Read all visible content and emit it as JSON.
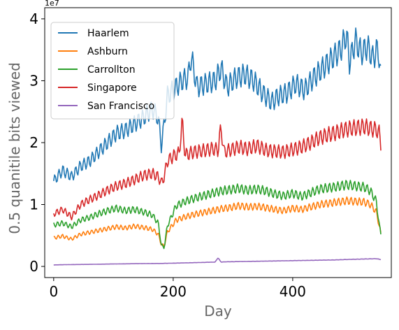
{
  "chart_data": {
    "type": "line",
    "title": "",
    "xlabel": "Day",
    "ylabel": "0.5 quanitile bits viewed",
    "y_scale_label": "1e7",
    "xlim": [
      -15,
      565
    ],
    "ylim": [
      -1800000,
      41800000
    ],
    "x_ticks": [
      0,
      200,
      400
    ],
    "x_tick_labels": [
      "0",
      "200",
      "400"
    ],
    "y_ticks": [
      0,
      10000000,
      20000000,
      30000000,
      40000000
    ],
    "y_tick_labels": [
      "0",
      "1",
      "2",
      "3",
      "4"
    ],
    "grid": false,
    "legend_position": "top-left",
    "series": [
      {
        "name": "Haarlem",
        "color": "#1f77b4",
        "x": [
          0,
          15,
          30,
          45,
          60,
          75,
          90,
          105,
          120,
          135,
          150,
          165,
          175,
          180,
          185,
          190,
          200,
          215,
          225,
          230,
          240,
          255,
          270,
          280,
          290,
          305,
          320,
          335,
          350,
          360,
          365,
          375,
          390,
          405,
          420,
          435,
          450,
          465,
          480,
          490,
          495,
          505,
          515,
          525,
          535,
          540,
          545,
          548
        ],
        "y": [
          13800000,
          15500000,
          14500000,
          16200000,
          17000000,
          18500000,
          20000000,
          21500000,
          22000000,
          23000000,
          24000000,
          25500000,
          24000000,
          19500000,
          23000000,
          27500000,
          28500000,
          30000000,
          30500000,
          34000000,
          29000000,
          29500000,
          30000000,
          32000000,
          29000000,
          30500000,
          31000000,
          30000000,
          28000000,
          27000000,
          26500000,
          27500000,
          28000000,
          29500000,
          28500000,
          30500000,
          32000000,
          33500000,
          35000000,
          37500000,
          33000000,
          36500000,
          34500000,
          35500000,
          33500000,
          35000000,
          34000000,
          30000000
        ]
      },
      {
        "name": "Ashburn",
        "color": "#ff7f0e",
        "x": [
          0,
          15,
          30,
          45,
          60,
          75,
          90,
          105,
          120,
          135,
          150,
          165,
          175,
          180,
          185,
          190,
          205,
          220,
          235,
          250,
          265,
          280,
          295,
          310,
          325,
          340,
          355,
          370,
          385,
          400,
          415,
          430,
          445,
          460,
          475,
          490,
          505,
          520,
          530,
          540,
          545,
          548
        ],
        "y": [
          4600000,
          4900000,
          4400000,
          5200000,
          5500000,
          5800000,
          6100000,
          6400000,
          6200000,
          6500000,
          6300000,
          6000000,
          5200000,
          3600000,
          3300000,
          5500000,
          7500000,
          8000000,
          8400000,
          8700000,
          9000000,
          9300000,
          9500000,
          9800000,
          9600000,
          9700000,
          9500000,
          9200000,
          9000000,
          9400000,
          9200000,
          9600000,
          10000000,
          10200000,
          10400000,
          10600000,
          10500000,
          10400000,
          10000000,
          8800000,
          6500000,
          5000000
        ]
      },
      {
        "name": "Carrollton",
        "color": "#2ca02c",
        "x": [
          0,
          15,
          30,
          45,
          60,
          75,
          90,
          105,
          120,
          135,
          150,
          165,
          175,
          180,
          185,
          190,
          205,
          220,
          235,
          250,
          265,
          280,
          295,
          310,
          325,
          340,
          355,
          370,
          385,
          400,
          415,
          430,
          445,
          460,
          475,
          490,
          505,
          520,
          530,
          540,
          545,
          548
        ],
        "y": [
          6700000,
          7000000,
          6400000,
          7500000,
          7900000,
          8500000,
          9000000,
          9400000,
          9000000,
          9200000,
          8800000,
          8300000,
          7000000,
          3500000,
          3000000,
          6500000,
          9800000,
          10500000,
          11000000,
          11400000,
          11800000,
          12200000,
          12400000,
          12600000,
          12300000,
          12500000,
          12200000,
          11700000,
          11400000,
          11800000,
          11300000,
          11900000,
          12500000,
          12700000,
          12900000,
          13200000,
          13000000,
          12800000,
          12200000,
          10500000,
          6500000,
          5000000
        ]
      },
      {
        "name": "Singapore",
        "color": "#d62728",
        "x": [
          0,
          15,
          30,
          45,
          60,
          75,
          90,
          105,
          120,
          135,
          150,
          165,
          175,
          180,
          185,
          190,
          200,
          210,
          215,
          220,
          235,
          250,
          265,
          275,
          280,
          285,
          295,
          310,
          325,
          340,
          355,
          370,
          385,
          400,
          415,
          430,
          445,
          460,
          475,
          490,
          505,
          520,
          530,
          540,
          545,
          548
        ],
        "y": [
          8500000,
          9200000,
          8000000,
          10000000,
          10800000,
          11500000,
          12300000,
          13000000,
          13400000,
          14000000,
          14700000,
          15000000,
          14500000,
          13500000,
          14500000,
          17000000,
          17800000,
          18300000,
          23500000,
          18000000,
          18500000,
          18700000,
          19000000,
          18800000,
          22500000,
          18500000,
          18800000,
          19300000,
          19000000,
          19500000,
          18800000,
          18600000,
          18500000,
          18900000,
          19300000,
          20000000,
          20800000,
          21300000,
          21700000,
          22200000,
          22400000,
          22600000,
          22300000,
          22100000,
          21500000,
          19500000
        ]
      },
      {
        "name": "San Francisco",
        "color": "#9467bd",
        "x": [
          0,
          30,
          60,
          90,
          120,
          150,
          180,
          210,
          240,
          270,
          275,
          280,
          290,
          320,
          350,
          380,
          410,
          440,
          470,
          500,
          520,
          540,
          548
        ],
        "y": [
          250000,
          300000,
          330000,
          380000,
          420000,
          460000,
          480000,
          550000,
          620000,
          700000,
          1400000,
          700000,
          750000,
          800000,
          850000,
          900000,
          950000,
          1000000,
          1050000,
          1150000,
          1200000,
          1250000,
          1100000
        ]
      }
    ]
  }
}
